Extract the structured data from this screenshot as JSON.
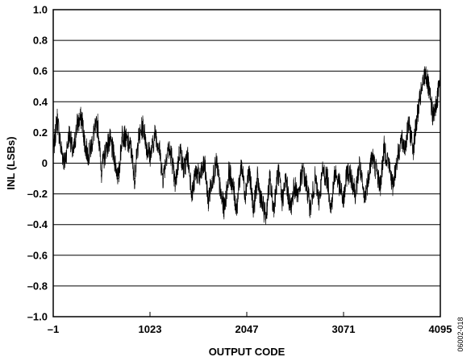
{
  "chart_data": {
    "type": "line",
    "xlabel": "OUTPUT CODE",
    "ylabel": "INL (LSBs)",
    "xlim": [
      -1,
      4095
    ],
    "ylim": [
      -1.0,
      1.0
    ],
    "x_ticks": [
      -1,
      1023,
      2047,
      3071,
      4095
    ],
    "x_tick_labels": [
      "–1",
      "1023",
      "2047",
      "3071",
      "4095"
    ],
    "y_ticks": [
      1.0,
      0.8,
      0.6,
      0.4,
      0.2,
      0,
      -0.2,
      -0.4,
      -0.6,
      -0.8,
      -1.0
    ],
    "y_tick_labels": [
      "1.0",
      "0.8",
      "0.6",
      "0.4",
      "0.2",
      "0",
      "–0.2",
      "–0.4",
      "–0.6",
      "–0.8",
      "–1.0"
    ],
    "grid": "horizontal",
    "series": [
      {
        "color": "#000000",
        "x": [
          -1,
          40,
          80,
          120,
          170,
          210,
          250,
          300,
          340,
          380,
          430,
          470,
          510,
          560,
          600,
          640,
          690,
          730,
          770,
          820,
          860,
          900,
          950,
          990,
          1030,
          1080,
          1120,
          1160,
          1210,
          1250,
          1290,
          1340,
          1380,
          1420,
          1470,
          1510,
          1550,
          1600,
          1640,
          1680,
          1730,
          1770,
          1810,
          1860,
          1900,
          1940,
          1990,
          2030,
          2070,
          2120,
          2160,
          2200,
          2250,
          2290,
          2330,
          2380,
          2420,
          2460,
          2510,
          2550,
          2590,
          2640,
          2680,
          2720,
          2770,
          2810,
          2850,
          2900,
          2940,
          2980,
          3030,
          3070,
          3110,
          3160,
          3200,
          3240,
          3290,
          3330,
          3370,
          3420,
          3460,
          3500,
          3550,
          3590,
          3630,
          3680,
          3720,
          3760,
          3810,
          3850,
          3890,
          3940,
          3980,
          4020,
          4060,
          4095
        ],
        "y": [
          0.05,
          0.3,
          0.1,
          0.0,
          0.2,
          0.05,
          0.25,
          0.3,
          0.1,
          0.05,
          0.2,
          0.25,
          -0.05,
          0.1,
          0.15,
          0.05,
          -0.1,
          0.2,
          0.15,
          0.1,
          -0.1,
          0.15,
          0.25,
          0.1,
          0.05,
          0.2,
          0.1,
          -0.1,
          0.1,
          0.05,
          -0.15,
          0.1,
          -0.05,
          0.05,
          -0.2,
          -0.05,
          -0.1,
          0.0,
          -0.25,
          -0.1,
          0.0,
          -0.2,
          -0.3,
          -0.05,
          -0.15,
          -0.3,
          0.0,
          -0.2,
          -0.05,
          -0.3,
          -0.1,
          -0.25,
          -0.35,
          -0.1,
          -0.3,
          -0.05,
          -0.25,
          -0.1,
          -0.3,
          -0.15,
          -0.2,
          -0.05,
          -0.15,
          -0.3,
          -0.1,
          -0.25,
          -0.05,
          -0.1,
          -0.3,
          -0.05,
          -0.15,
          -0.25,
          -0.05,
          -0.1,
          -0.2,
          0.0,
          -0.25,
          -0.1,
          0.05,
          -0.05,
          -0.15,
          0.1,
          0.0,
          -0.15,
          0.0,
          0.15,
          0.1,
          0.25,
          0.1,
          0.3,
          0.45,
          0.6,
          0.45,
          0.3,
          0.4,
          0.6
        ]
      }
    ]
  },
  "figure_id": "06002-018"
}
